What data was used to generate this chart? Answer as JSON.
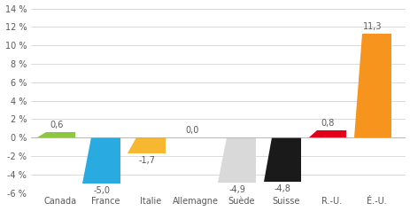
{
  "categories": [
    "Canada",
    "France",
    "Italie",
    "Allemagne",
    "Suède",
    "Suisse",
    "R.-U.",
    "É.-U."
  ],
  "values": [
    0.6,
    -5.0,
    -1.7,
    0.0,
    -4.9,
    -4.8,
    0.8,
    11.3
  ],
  "colors": [
    "#8dc63f",
    "#29abe2",
    "#f7b731",
    "#cccccc",
    "#d9d9d9",
    "#1a1a1a",
    "#e3001b",
    "#f7941d"
  ],
  "ylim": [
    -6,
    14
  ],
  "yticks": [
    -6,
    -4,
    -2,
    0,
    2,
    4,
    6,
    8,
    10,
    12,
    14
  ],
  "ytick_labels": [
    "-6 %",
    "-4 %",
    "-2 %",
    "0 %",
    "2 %",
    "4 %",
    "6 %",
    "8 %",
    "10 %",
    "12 %",
    "14 %"
  ],
  "label_values": [
    "0,6",
    "-5,0",
    "-1,7",
    "0,0",
    "-4,9",
    "-4,8",
    "0,8",
    "11,3"
  ],
  "background_color": "#ffffff",
  "grid_color": "#cccccc",
  "text_color": "#595959",
  "bar_width": 0.65,
  "slant": 0.18
}
